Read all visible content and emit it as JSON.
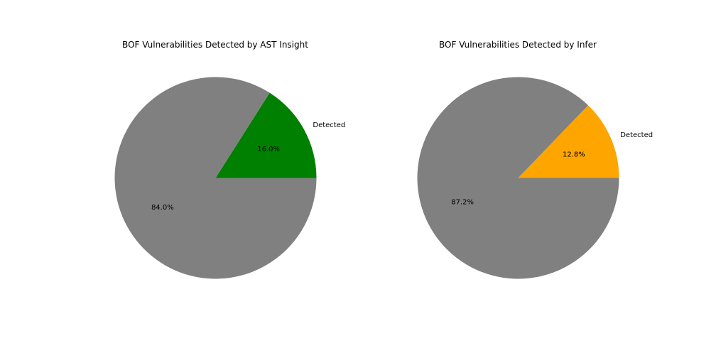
{
  "chart_data": [
    {
      "type": "pie",
      "title": "BOF Vulnerabilities Detected by AST Insight",
      "slices": [
        {
          "label": "Detected",
          "value": 16.0,
          "pct_label": "16.0%",
          "color": "#008000"
        },
        {
          "label": "",
          "value": 84.0,
          "pct_label": "84.0%",
          "color": "#808080"
        }
      ],
      "start_angle_deg": 0,
      "direction": "counterclockwise"
    },
    {
      "type": "pie",
      "title": "BOF Vulnerabilities Detected by Infer",
      "slices": [
        {
          "label": "Detected",
          "value": 12.8,
          "pct_label": "12.8%",
          "color": "#FFA500"
        },
        {
          "label": "",
          "value": 87.2,
          "pct_label": "87.2%",
          "color": "#808080"
        }
      ],
      "start_angle_deg": 0,
      "direction": "counterclockwise"
    }
  ]
}
